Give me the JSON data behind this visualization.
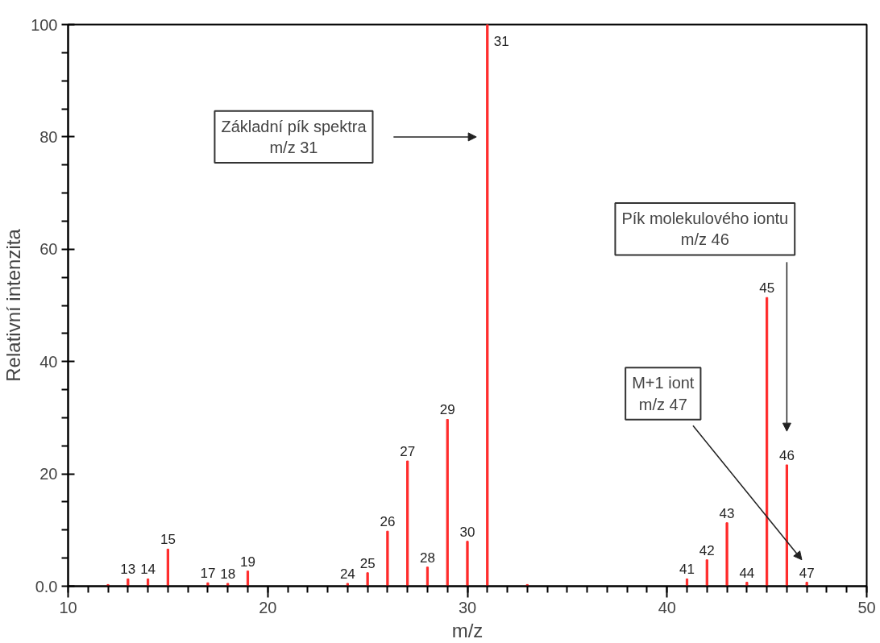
{
  "chart_data": {
    "type": "bar",
    "xlabel": "m/z",
    "ylabel": "Relativní intenzita",
    "x": [
      12,
      13,
      14,
      15,
      17,
      18,
      19,
      24,
      25,
      26,
      27,
      28,
      29,
      30,
      31,
      33,
      41,
      42,
      43,
      44,
      45,
      46,
      47
    ],
    "series": [
      {
        "color": "#ff2a2a",
        "values": [
          0.3,
          1.3,
          1.3,
          6.6,
          0.6,
          0.5,
          2.7,
          0.5,
          2.4,
          9.8,
          22.3,
          3.4,
          29.7,
          8.0,
          100,
          0.3,
          1.3,
          4.7,
          11.3,
          0.7,
          51.4,
          21.6,
          0.7
        ]
      }
    ],
    "xlim": [
      10,
      50
    ],
    "xticks": [
      10,
      20,
      30,
      40,
      50
    ],
    "ylim": [
      0,
      100
    ],
    "yticks": [
      {
        "value": 0,
        "label": "0.0"
      },
      20,
      40,
      60,
      80,
      100
    ],
    "grid": false,
    "annotations": [
      "Základní pík spektra\nm/z 31",
      "Pík molekulového iontu\nm/z 46",
      "M+1 iont\nm/z 47",
      {
        "text": "13",
        "x": 13,
        "y": 1.3
      },
      {
        "text": "14",
        "x": 14,
        "y": 1.3
      },
      {
        "text": "15",
        "x": 15,
        "y": 6.6
      },
      {
        "text": "17",
        "x": 17,
        "y": 0.6
      },
      {
        "text": "18",
        "x": 18,
        "y": 0.5
      },
      {
        "text": "19",
        "x": 19,
        "y": 2.7
      },
      {
        "text": "24",
        "x": 24,
        "y": 0.5
      },
      {
        "text": "25",
        "x": 25,
        "y": 2.4
      },
      {
        "text": "26",
        "x": 26,
        "y": 9.8
      },
      {
        "text": "27",
        "x": 27,
        "y": 22.3
      },
      {
        "text": "28",
        "x": 28,
        "y": 3.4
      },
      {
        "text": "29",
        "x": 29,
        "y": 29.7
      },
      {
        "text": "30",
        "x": 30,
        "y": 8.0
      },
      {
        "text": "31",
        "x": 31,
        "y": 100
      },
      {
        "text": "41",
        "x": 41,
        "y": 1.3
      },
      {
        "text": "42",
        "x": 42,
        "y": 4.7
      },
      {
        "text": "43",
        "x": 43,
        "y": 11.3
      },
      {
        "text": "44",
        "x": 44,
        "y": 0.7
      },
      {
        "text": "45",
        "x": 45,
        "y": 51.4
      },
      {
        "text": "46",
        "x": 46,
        "y": 21.6
      },
      {
        "text": "47",
        "x": 47,
        "y": 0.7
      }
    ]
  }
}
